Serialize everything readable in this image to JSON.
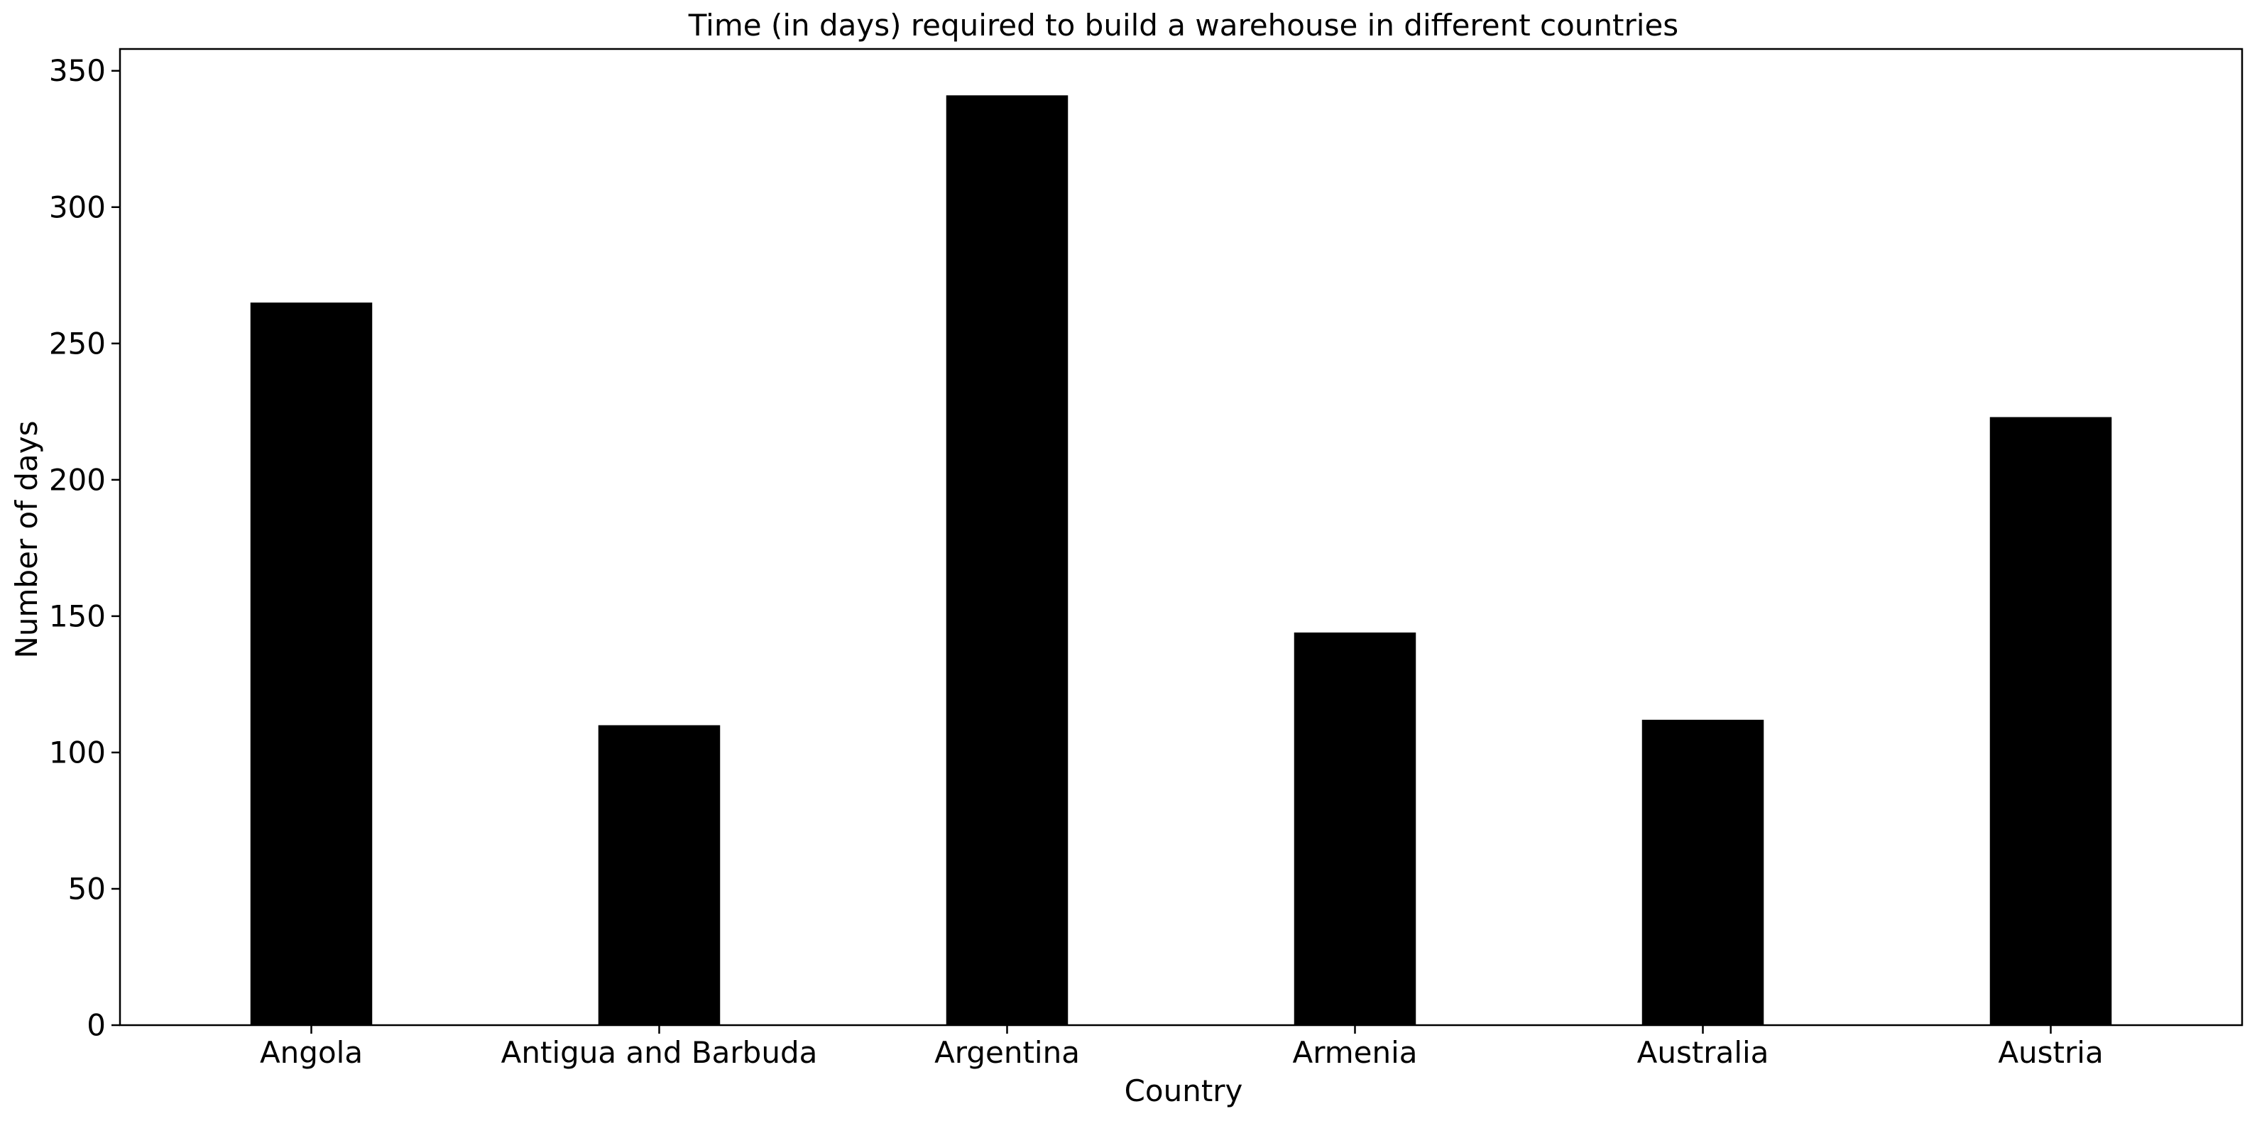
{
  "chart_data": {
    "type": "bar",
    "title": "Time (in days) required to build a warehouse in different countries",
    "xlabel": "Country",
    "ylabel": "Number of days",
    "categories": [
      "Angola",
      "Antigua and Barbuda",
      "Argentina",
      "Armenia",
      "Australia",
      "Austria"
    ],
    "values": [
      265,
      110,
      341,
      144,
      112,
      223
    ],
    "ylim": [
      0,
      358
    ],
    "yticks": [
      0,
      50,
      100,
      150,
      200,
      250,
      300,
      350
    ],
    "grid": false,
    "legend": "none",
    "bar_color": "#000000"
  }
}
